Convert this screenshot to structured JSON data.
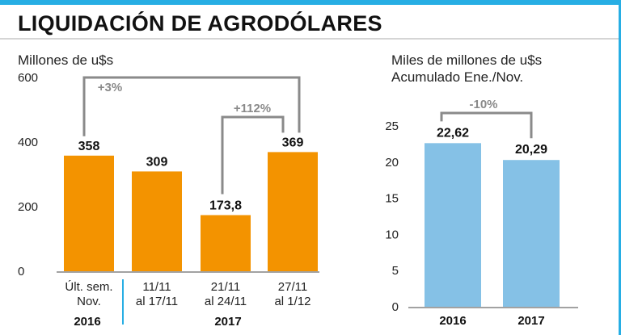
{
  "title": "LIQUIDACIÓN DE AGRODÓLARES",
  "colors": {
    "accent": "#27aee4",
    "left_bars": "#f39300",
    "right_bars": "#85c1e6",
    "annotation": "#8a8a8a"
  },
  "chart_data": [
    {
      "type": "bar",
      "unit_label": "Millones de u$s",
      "categories": [
        [
          "Últ. sem.",
          "Nov."
        ],
        [
          "11/11",
          "al 17/11"
        ],
        [
          "21/11",
          "al 24/11"
        ],
        [
          "27/11",
          "al 1/12"
        ]
      ],
      "values": [
        358,
        309,
        173.8,
        369
      ],
      "value_labels": [
        "358",
        "309",
        "173,8",
        "369"
      ],
      "group_labels": [
        "2016",
        "2017"
      ],
      "ylim": [
        0,
        600
      ],
      "yticks": [
        "0",
        "200",
        "400",
        "600"
      ],
      "annotations": [
        {
          "text": "+3%",
          "from_index": 0,
          "to_index": 3
        },
        {
          "text": "+112%",
          "from_index": 2,
          "to_index": 3
        }
      ],
      "grid": false
    },
    {
      "type": "bar",
      "unit_label": [
        "Miles de millones de u$s",
        "Acumulado Ene./Nov."
      ],
      "categories": [
        "2016",
        "2017"
      ],
      "values": [
        22.62,
        20.29
      ],
      "value_labels": [
        "22,62",
        "20,29"
      ],
      "ylim": [
        0,
        25
      ],
      "yticks": [
        "0",
        "5",
        "10",
        "15",
        "20",
        "25"
      ],
      "annotations": [
        {
          "text": "-10%",
          "from_index": 0,
          "to_index": 1
        }
      ],
      "grid": false
    }
  ]
}
